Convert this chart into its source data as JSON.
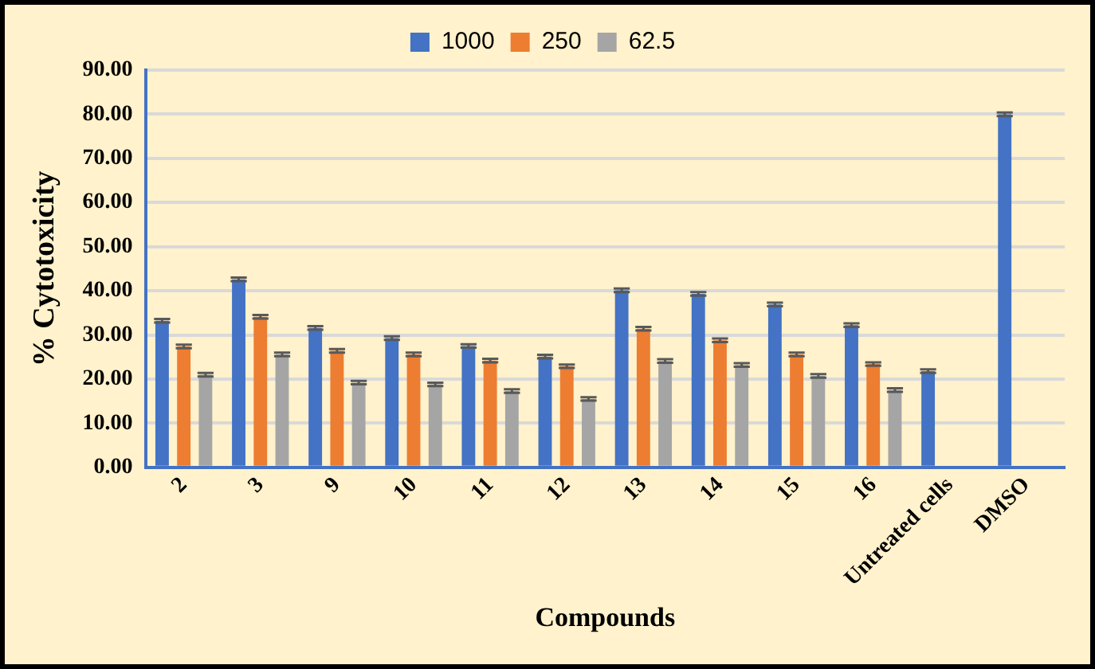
{
  "chart_data": {
    "type": "bar",
    "xlabel": "Compounds",
    "ylabel": "% Cytotoxicity",
    "categories": [
      "2",
      "3",
      "9",
      "10",
      "11",
      "12",
      "13",
      "14",
      "15",
      "16",
      "Untreated cells",
      "DMSO"
    ],
    "series": [
      {
        "name": "1000",
        "color": "#4472c4",
        "values": [
          33.2,
          42.6,
          31.6,
          29.3,
          27.5,
          25.1,
          40.1,
          39.3,
          36.9,
          32.2,
          21.8,
          80.0
        ],
        "errors": [
          0.4,
          0.4,
          0.4,
          0.4,
          0.4,
          0.4,
          0.4,
          0.4,
          0.4,
          0.4,
          0.4,
          0.4
        ]
      },
      {
        "name": "250",
        "color": "#ed7d31",
        "values": [
          27.4,
          34.1,
          26.4,
          25.6,
          24.2,
          22.9,
          31.4,
          28.8,
          25.6,
          23.4,
          null,
          null
        ],
        "errors": [
          0.4,
          0.4,
          0.4,
          0.4,
          0.4,
          0.4,
          0.4,
          0.4,
          0.4,
          0.4,
          null,
          null
        ]
      },
      {
        "name": "62.5",
        "color": "#a5a5a5",
        "values": [
          21.0,
          25.6,
          19.2,
          18.8,
          17.3,
          15.5,
          24.1,
          23.2,
          20.7,
          17.5,
          null,
          null
        ],
        "errors": [
          0.4,
          0.4,
          0.4,
          0.4,
          0.4,
          0.4,
          0.4,
          0.4,
          0.4,
          0.4,
          null,
          null
        ]
      }
    ],
    "ylim": [
      0,
      90
    ],
    "yticks": [
      {
        "value": 0,
        "label": "0.00"
      },
      {
        "value": 10,
        "label": "10.00"
      },
      {
        "value": 20,
        "label": "20.00"
      },
      {
        "value": 30,
        "label": "30.00"
      },
      {
        "value": 40,
        "label": "40.00"
      },
      {
        "value": 50,
        "label": "50.00"
      },
      {
        "value": 60,
        "label": "60.00"
      },
      {
        "value": 70,
        "label": "70.00"
      },
      {
        "value": 80,
        "label": "80.00"
      },
      {
        "value": 90,
        "label": "90.00"
      }
    ],
    "grid": "y",
    "legend": "top"
  }
}
